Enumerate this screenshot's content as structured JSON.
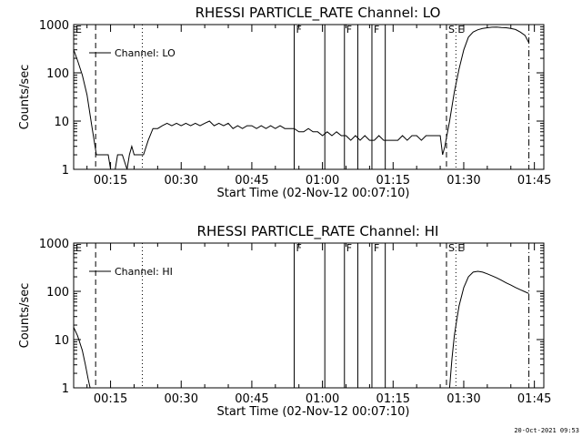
{
  "colors": {
    "background": "#ffffff",
    "ink": "#000000"
  },
  "timestamp": "20-Oct-2021 09:53",
  "chart_data": [
    {
      "type": "line",
      "title": "RHESSI PARTICLE_RATE Channel: LO",
      "xlabel": "Start Time (02-Nov-12 00:07:10)",
      "ylabel": "Counts/sec",
      "legend": "Channel: LO",
      "legend_position": "top-left",
      "y_scale": "log",
      "ylim": [
        1,
        1000
      ],
      "xlim": [
        "00:07:10",
        "01:47:00"
      ],
      "x_tick_labels": [
        "00:15",
        "00:30",
        "00:45",
        "01:00",
        "01:15",
        "01:30",
        "01:45"
      ],
      "y_tick_labels": [
        "1",
        "10",
        "100",
        "1000"
      ],
      "markers": [
        {
          "time": "00:07:10",
          "style": "solid",
          "label": "E"
        },
        {
          "time": "00:11:50",
          "style": "dashed",
          "label": ""
        },
        {
          "time": "00:21:45",
          "style": "dotted",
          "label": ""
        },
        {
          "time": "00:54:00",
          "style": "solid",
          "label": "F"
        },
        {
          "time": "01:00:30",
          "style": "solid",
          "label": ""
        },
        {
          "time": "01:04:40",
          "style": "solid",
          "label": "F"
        },
        {
          "time": "01:07:30",
          "style": "solid",
          "label": ""
        },
        {
          "time": "01:10:30",
          "style": "solid",
          "label": "F"
        },
        {
          "time": "01:13:20",
          "style": "solid",
          "label": ""
        },
        {
          "time": "01:26:20",
          "style": "dashed",
          "label": "S"
        },
        {
          "time": "01:28:20",
          "style": "dotted",
          "label": "E"
        },
        {
          "time": "01:43:50",
          "style": "dashdot",
          "label": ""
        }
      ],
      "series": [
        {
          "name": "Channel: LO",
          "points": [
            [
              "00:07:10",
              300
            ],
            [
              "00:08:00",
              180
            ],
            [
              "00:09:00",
              90
            ],
            [
              "00:10:00",
              35
            ],
            [
              "00:11:00",
              8
            ],
            [
              "00:12:00",
              2
            ],
            [
              "00:13:30",
              2
            ],
            [
              "00:14:30",
              2
            ],
            [
              "00:15:00",
              1
            ],
            [
              "00:16:00",
              1
            ],
            [
              "00:16:30",
              2
            ],
            [
              "00:17:30",
              2
            ],
            [
              "00:18:30",
              1
            ],
            [
              "00:19:00",
              2
            ],
            [
              "00:19:30",
              3
            ],
            [
              "00:20:00",
              2
            ],
            [
              "00:21:00",
              2
            ],
            [
              "00:22:00",
              2
            ],
            [
              "00:23:00",
              4
            ],
            [
              "00:24:00",
              7
            ],
            [
              "00:25:00",
              7
            ],
            [
              "00:26:00",
              8
            ],
            [
              "00:27:00",
              9
            ],
            [
              "00:28:00",
              8
            ],
            [
              "00:29:00",
              9
            ],
            [
              "00:30:00",
              8
            ],
            [
              "00:31:00",
              9
            ],
            [
              "00:32:00",
              8
            ],
            [
              "00:33:00",
              9
            ],
            [
              "00:34:00",
              8
            ],
            [
              "00:35:00",
              9
            ],
            [
              "00:36:00",
              10
            ],
            [
              "00:37:00",
              8
            ],
            [
              "00:38:00",
              9
            ],
            [
              "00:39:00",
              8
            ],
            [
              "00:40:00",
              9
            ],
            [
              "00:41:00",
              7
            ],
            [
              "00:42:00",
              8
            ],
            [
              "00:43:00",
              7
            ],
            [
              "00:44:00",
              8
            ],
            [
              "00:45:00",
              8
            ],
            [
              "00:46:00",
              7
            ],
            [
              "00:47:00",
              8
            ],
            [
              "00:48:00",
              7
            ],
            [
              "00:49:00",
              8
            ],
            [
              "00:50:00",
              7
            ],
            [
              "00:51:00",
              8
            ],
            [
              "00:52:00",
              7
            ],
            [
              "00:53:00",
              7
            ],
            [
              "00:54:00",
              7
            ],
            [
              "00:55:00",
              6
            ],
            [
              "00:56:00",
              6
            ],
            [
              "00:57:00",
              7
            ],
            [
              "00:58:00",
              6
            ],
            [
              "00:59:00",
              6
            ],
            [
              "01:00:00",
              5
            ],
            [
              "01:01:00",
              6
            ],
            [
              "01:02:00",
              5
            ],
            [
              "01:03:00",
              6
            ],
            [
              "01:04:00",
              5
            ],
            [
              "01:05:00",
              5
            ],
            [
              "01:06:00",
              4
            ],
            [
              "01:07:00",
              5
            ],
            [
              "01:08:00",
              4
            ],
            [
              "01:09:00",
              5
            ],
            [
              "01:10:00",
              4
            ],
            [
              "01:11:00",
              4
            ],
            [
              "01:12:00",
              5
            ],
            [
              "01:13:00",
              4
            ],
            [
              "01:14:00",
              4
            ],
            [
              "01:15:00",
              4
            ],
            [
              "01:16:00",
              4
            ],
            [
              "01:17:00",
              5
            ],
            [
              "01:18:00",
              4
            ],
            [
              "01:19:00",
              5
            ],
            [
              "01:20:00",
              5
            ],
            [
              "01:21:00",
              4
            ],
            [
              "01:22:00",
              5
            ],
            [
              "01:23:00",
              5
            ],
            [
              "01:24:00",
              5
            ],
            [
              "01:25:00",
              5
            ],
            [
              "01:25:30",
              2
            ],
            [
              "01:26:00",
              3
            ],
            [
              "01:27:00",
              10
            ],
            [
              "01:28:00",
              40
            ],
            [
              "01:29:00",
              120
            ],
            [
              "01:30:00",
              300
            ],
            [
              "01:31:00",
              550
            ],
            [
              "01:32:00",
              700
            ],
            [
              "01:33:00",
              780
            ],
            [
              "01:34:00",
              830
            ],
            [
              "01:35:00",
              860
            ],
            [
              "01:36:00",
              880
            ],
            [
              "01:37:00",
              890
            ],
            [
              "01:38:00",
              870
            ],
            [
              "01:39:00",
              860
            ],
            [
              "01:40:00",
              830
            ],
            [
              "01:41:00",
              790
            ],
            [
              "01:42:00",
              700
            ],
            [
              "01:43:00",
              600
            ],
            [
              "01:43:50",
              420
            ]
          ]
        }
      ]
    },
    {
      "type": "line",
      "title": "RHESSI PARTICLE_RATE Channel: HI",
      "xlabel": "Start Time (02-Nov-12 00:07:10)",
      "ylabel": "Counts/sec",
      "legend": "Channel: HI",
      "legend_position": "top-left",
      "y_scale": "log",
      "ylim": [
        1,
        1000
      ],
      "xlim": [
        "00:07:10",
        "01:47:00"
      ],
      "x_tick_labels": [
        "00:15",
        "00:30",
        "00:45",
        "01:00",
        "01:15",
        "01:30",
        "01:45"
      ],
      "y_tick_labels": [
        "1",
        "10",
        "100",
        "1000"
      ],
      "markers": [
        {
          "time": "00:07:10",
          "style": "solid",
          "label": "E"
        },
        {
          "time": "00:11:50",
          "style": "dashed",
          "label": ""
        },
        {
          "time": "00:21:45",
          "style": "dotted",
          "label": ""
        },
        {
          "time": "00:54:00",
          "style": "solid",
          "label": "F"
        },
        {
          "time": "01:00:30",
          "style": "solid",
          "label": ""
        },
        {
          "time": "01:04:40",
          "style": "solid",
          "label": "F"
        },
        {
          "time": "01:07:30",
          "style": "solid",
          "label": ""
        },
        {
          "time": "01:10:30",
          "style": "solid",
          "label": "F"
        },
        {
          "time": "01:13:20",
          "style": "solid",
          "label": ""
        },
        {
          "time": "01:26:20",
          "style": "dashed",
          "label": "S"
        },
        {
          "time": "01:28:20",
          "style": "dotted",
          "label": "E"
        },
        {
          "time": "01:43:50",
          "style": "dashdot",
          "label": ""
        }
      ],
      "series": [
        {
          "name": "Channel: HI",
          "points": [
            [
              "00:07:10",
              18
            ],
            [
              "00:08:00",
              12
            ],
            [
              "00:09:00",
              6
            ],
            [
              "00:09:40",
              3
            ],
            [
              "00:10:15",
              1.5
            ],
            [
              "00:10:40",
              1
            ],
            [
              "01:27:00",
              1
            ],
            [
              "01:27:30",
              4
            ],
            [
              "01:28:00",
              12
            ],
            [
              "01:28:30",
              25
            ],
            [
              "01:29:00",
              50
            ],
            [
              "01:30:00",
              120
            ],
            [
              "01:31:00",
              200
            ],
            [
              "01:32:00",
              250
            ],
            [
              "01:33:00",
              260
            ],
            [
              "01:34:00",
              250
            ],
            [
              "01:35:00",
              230
            ],
            [
              "01:36:00",
              210
            ],
            [
              "01:37:00",
              190
            ],
            [
              "01:38:00",
              170
            ],
            [
              "01:39:00",
              150
            ],
            [
              "01:40:00",
              135
            ],
            [
              "01:41:00",
              120
            ],
            [
              "01:42:00",
              108
            ],
            [
              "01:43:00",
              98
            ],
            [
              "01:43:50",
              90
            ]
          ]
        }
      ]
    }
  ]
}
